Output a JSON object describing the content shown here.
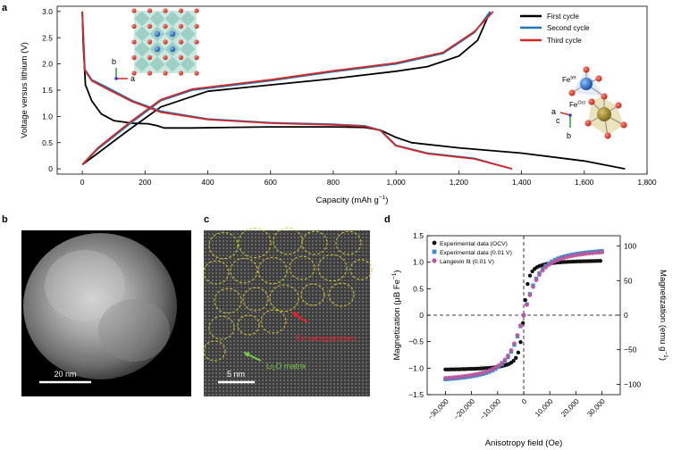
{
  "panel_labels": {
    "a": "a",
    "b": "b",
    "c": "c",
    "d": "d"
  },
  "structure_a": {
    "axis_b": "b",
    "axis_a": "a"
  },
  "structure_b": {
    "fe_tet_main": "Fe",
    "fe_tet_sup": "tet",
    "fe_oct_main": "Fe",
    "fe_oct_sup": "Oct",
    "axis_a": "a",
    "axis_c": "c",
    "axis_b": "b"
  },
  "micrograph_b": {
    "scale_bar": "20 nm"
  },
  "micrograph_c": {
    "scale_bar": "5 nm",
    "annotation_fe": "Fe nanoparticles",
    "annotation_li2o_main": "Li",
    "annotation_li2o_sub": "2",
    "annotation_li2o_rest": "O matrix"
  },
  "colors": {
    "first_cycle": "#000000",
    "second_cycle": "#1f77b4",
    "third_cycle": "#d62728",
    "ocv": "#111111",
    "v001": "#3a8fd0",
    "langevin": "#c0549c",
    "fe_label": "#e8202a",
    "li2o_label": "#7ac943",
    "overlay": "#d8c832"
  },
  "chart_data": [
    {
      "panel": "a",
      "type": "line",
      "xlabel_main": "Capacity (mAh g",
      "xlabel_sup": "−1",
      "xlabel_end": ")",
      "ylabel": "Voltage versus lithium (V)",
      "xlim": [
        -80,
        1800
      ],
      "ylim": [
        -0.1,
        3.1
      ],
      "xticks": [
        0,
        200,
        400,
        600,
        800,
        1000,
        1200,
        1400,
        1600,
        1800
      ],
      "xtick_labels": [
        "0",
        "200",
        "400",
        "600",
        "800",
        "1,000",
        "1,200",
        "1,400",
        "1,600",
        "1,800"
      ],
      "yticks": [
        0,
        0.5,
        1.0,
        1.5,
        2.0,
        2.5,
        3.0
      ],
      "ytick_labels": [
        "0",
        "0.5",
        "1.0",
        "1.5",
        "2.0",
        "2.5",
        "3.0"
      ],
      "legend_position": "top-right",
      "series": [
        {
          "name": "First cycle",
          "color_key": "first_cycle",
          "discharge": [
            [
              0,
              3.0
            ],
            [
              3,
              2.4
            ],
            [
              10,
              1.6
            ],
            [
              30,
              1.3
            ],
            [
              60,
              1.05
            ],
            [
              100,
              0.92
            ],
            [
              160,
              0.87
            ],
            [
              210,
              0.86
            ],
            [
              240,
              0.82
            ],
            [
              260,
              0.78
            ],
            [
              350,
              0.78
            ],
            [
              600,
              0.8
            ],
            [
              800,
              0.8
            ],
            [
              900,
              0.79
            ],
            [
              950,
              0.74
            ],
            [
              1000,
              0.6
            ],
            [
              1050,
              0.5
            ],
            [
              1200,
              0.4
            ],
            [
              1400,
              0.3
            ],
            [
              1600,
              0.15
            ],
            [
              1730,
              0.0
            ]
          ],
          "charge": [
            [
              0,
              0.08
            ],
            [
              50,
              0.3
            ],
            [
              150,
              0.75
            ],
            [
              250,
              1.18
            ],
            [
              400,
              1.48
            ],
            [
              600,
              1.6
            ],
            [
              800,
              1.72
            ],
            [
              1000,
              1.86
            ],
            [
              1100,
              1.95
            ],
            [
              1200,
              2.15
            ],
            [
              1260,
              2.45
            ],
            [
              1300,
              3.0
            ]
          ]
        },
        {
          "name": "Second cycle",
          "color_key": "second_cycle",
          "discharge": [
            [
              0,
              3.0
            ],
            [
              8,
              1.9
            ],
            [
              30,
              1.7
            ],
            [
              80,
              1.55
            ],
            [
              160,
              1.3
            ],
            [
              250,
              1.1
            ],
            [
              400,
              0.95
            ],
            [
              600,
              0.88
            ],
            [
              800,
              0.85
            ],
            [
              900,
              0.82
            ],
            [
              950,
              0.74
            ],
            [
              1000,
              0.45
            ],
            [
              1100,
              0.3
            ],
            [
              1250,
              0.2
            ],
            [
              1370,
              0.0
            ]
          ],
          "charge": [
            [
              0,
              0.08
            ],
            [
              50,
              0.38
            ],
            [
              150,
              0.85
            ],
            [
              250,
              1.3
            ],
            [
              350,
              1.5
            ],
            [
              600,
              1.68
            ],
            [
              800,
              1.85
            ],
            [
              1000,
              2.0
            ],
            [
              1150,
              2.2
            ],
            [
              1250,
              2.6
            ],
            [
              1300,
              3.0
            ]
          ]
        },
        {
          "name": "Third cycle",
          "color_key": "third_cycle",
          "discharge": [
            [
              0,
              3.0
            ],
            [
              8,
              1.88
            ],
            [
              30,
              1.68
            ],
            [
              80,
              1.52
            ],
            [
              160,
              1.28
            ],
            [
              250,
              1.08
            ],
            [
              400,
              0.94
            ],
            [
              600,
              0.87
            ],
            [
              800,
              0.84
            ],
            [
              900,
              0.81
            ],
            [
              950,
              0.73
            ],
            [
              1000,
              0.44
            ],
            [
              1100,
              0.29
            ],
            [
              1250,
              0.19
            ],
            [
              1370,
              0.0
            ]
          ],
          "charge": [
            [
              0,
              0.08
            ],
            [
              50,
              0.4
            ],
            [
              150,
              0.88
            ],
            [
              250,
              1.32
            ],
            [
              350,
              1.52
            ],
            [
              600,
              1.7
            ],
            [
              800,
              1.87
            ],
            [
              1000,
              2.02
            ],
            [
              1150,
              2.22
            ],
            [
              1250,
              2.62
            ],
            [
              1310,
              3.0
            ]
          ]
        }
      ]
    },
    {
      "panel": "d",
      "type": "scatter",
      "xlabel": "Anisotropy field (Oe)",
      "ylabel_left_main": "Magnetization (μB Fe",
      "ylabel_left_sup": "−1",
      "ylabel_left_end": ")",
      "ylabel_right_main": "Magnetization (emu g",
      "ylabel_right_sup": "−1",
      "ylabel_right_end": ")",
      "xlim": [
        -37000,
        37000
      ],
      "ylim": [
        -1.5,
        1.5
      ],
      "ylim_right": [
        -115,
        115
      ],
      "xticks": [
        -30000,
        -20000,
        -10000,
        0,
        10000,
        20000,
        30000
      ],
      "xtick_labels": [
        "−30,000",
        "−20,000",
        "−10,000",
        "0",
        "10,000",
        "20,000",
        "30,000"
      ],
      "yticks": [
        -1.5,
        -1.0,
        -0.5,
        0,
        0.5,
        1.0,
        1.5
      ],
      "ytick_labels": [
        "−1.5",
        "−1.0",
        "−0.5",
        "0",
        "0.5",
        "1.0",
        "1.5"
      ],
      "yticks_right": [
        -100,
        -50,
        0,
        50,
        100
      ],
      "ytick_labels_right": [
        "−100",
        "−50",
        "0",
        "50",
        "100"
      ],
      "legend_position": "top-left",
      "series": [
        {
          "name": "Experimental data (OCV)",
          "color_key": "ocv",
          "saturation": 1.05,
          "width_oe": 700,
          "background": 0.0
        },
        {
          "name": "Experimental data (0.01 V)",
          "color_key": "v001",
          "saturation": 1.32,
          "width_oe": 2500,
          "background": 0.0
        },
        {
          "name": "Langevin fit (0.01 V)",
          "color_key": "langevin",
          "saturation": 1.3,
          "width_oe": 2600,
          "background": 0.0
        }
      ]
    }
  ]
}
